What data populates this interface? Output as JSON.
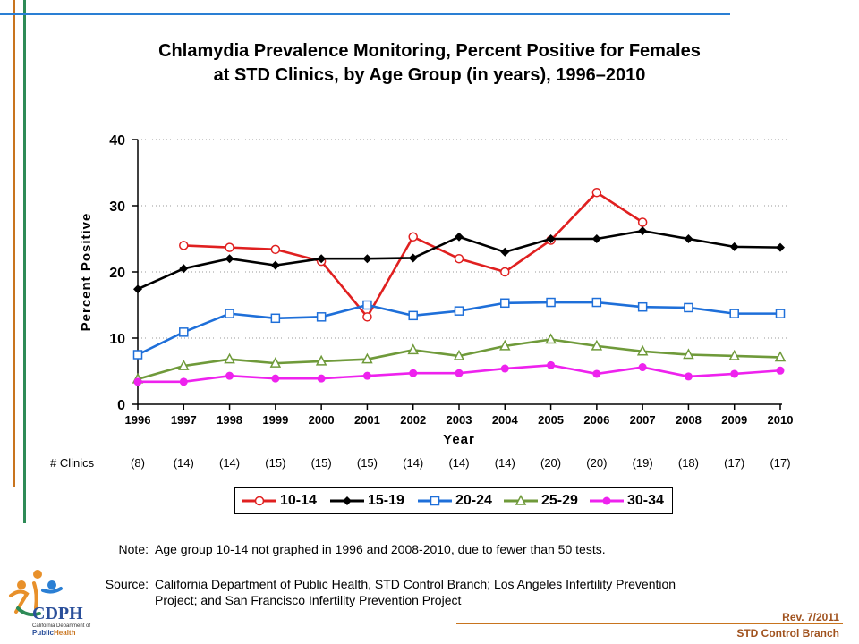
{
  "title_lines": [
    "Chlamydia Prevalence Monitoring, Percent Positive for Females",
    "at STD Clinics, by Age Group (in years), 1996–2010"
  ],
  "chart_data": {
    "type": "line",
    "title": "Chlamydia Prevalence Monitoring, Percent Positive for Females at STD Clinics, by Age Group (in years), 1996–2010",
    "xlabel": "Year",
    "ylabel": "Percent Positive",
    "ylim": [
      0,
      40
    ],
    "yticks": [
      0,
      10,
      20,
      30,
      40
    ],
    "grid": "horizontal dotted",
    "legend_position": "bottom",
    "categories": [
      "1996",
      "1997",
      "1998",
      "1999",
      "2000",
      "2001",
      "2002",
      "2003",
      "2004",
      "2005",
      "2006",
      "2007",
      "2008",
      "2009",
      "2010"
    ],
    "series": [
      {
        "name": "10-14",
        "color": "#e02020",
        "marker": "circle-open",
        "values": [
          null,
          24.0,
          23.7,
          23.4,
          21.6,
          13.2,
          25.3,
          22.0,
          20.0,
          24.8,
          32.0,
          27.5,
          null,
          null,
          null
        ]
      },
      {
        "name": "15-19",
        "color": "#000000",
        "marker": "diamond-filled",
        "values": [
          17.4,
          20.5,
          22.0,
          21.0,
          22.0,
          22.0,
          22.1,
          25.3,
          23.0,
          25.0,
          25.0,
          26.2,
          25.0,
          23.8,
          23.7
        ]
      },
      {
        "name": "20-24",
        "color": "#1e6fd9",
        "marker": "square-open",
        "values": [
          7.5,
          10.9,
          13.7,
          13.0,
          13.2,
          15.0,
          13.4,
          14.1,
          15.3,
          15.4,
          15.4,
          14.7,
          14.6,
          13.7,
          13.7
        ]
      },
      {
        "name": "25-29",
        "color": "#6f9a3a",
        "marker": "triangle-open",
        "values": [
          3.8,
          5.8,
          6.8,
          6.2,
          6.5,
          6.8,
          8.2,
          7.3,
          8.8,
          9.8,
          8.8,
          8.0,
          7.5,
          7.3,
          7.1
        ]
      },
      {
        "name": "30-34",
        "color": "#ee22ee",
        "marker": "circle-filled",
        "values": [
          3.4,
          3.4,
          4.3,
          3.9,
          3.9,
          4.3,
          4.7,
          4.7,
          5.4,
          5.9,
          4.6,
          5.6,
          4.2,
          4.6,
          5.1
        ]
      }
    ]
  },
  "clinics": {
    "label": "# Clinics",
    "counts": [
      "(8)",
      "(14)",
      "(14)",
      "(15)",
      "(15)",
      "(15)",
      "(14)",
      "(14)",
      "(14)",
      "(20)",
      "(20)",
      "(19)",
      "(18)",
      "(17)",
      "(17)"
    ]
  },
  "notes": {
    "note_label": "Note:",
    "note_text": "Age group 10-14 not graphed in 1996 and 2008-2010, due to fewer than 50 tests.",
    "source_label": "Source:",
    "source_line1": "California Department of Public Health, STD Control Branch; Los Angeles Infertility Prevention",
    "source_line2": "Project; and San Francisco Infertility Prevention Project"
  },
  "logo": {
    "abbrev": "CDPH",
    "org_line1": "California Department of",
    "org_line2a": "Public",
    "org_line2b": "Health"
  },
  "footer": {
    "rev": "Rev. 7/2011",
    "branch": "STD Control Branch"
  },
  "theme": {
    "accent_blue": "#2a7fd4",
    "accent_orange": "#c8741e",
    "accent_green": "#2e8b57",
    "footer_brown": "#a0521e"
  }
}
